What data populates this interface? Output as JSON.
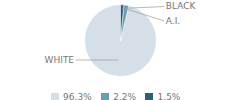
{
  "chart_data": {
    "type": "pie",
    "categories": [
      "WHITE",
      "A.I.",
      "BLACK"
    ],
    "values": [
      96.3,
      2.2,
      1.5
    ],
    "value_labels": [
      "96.3%",
      "2.2%",
      "1.5%"
    ],
    "colors": [
      "#d4dfe8",
      "#6a9db8",
      "#2e5f7a"
    ],
    "legend": "bottom"
  }
}
